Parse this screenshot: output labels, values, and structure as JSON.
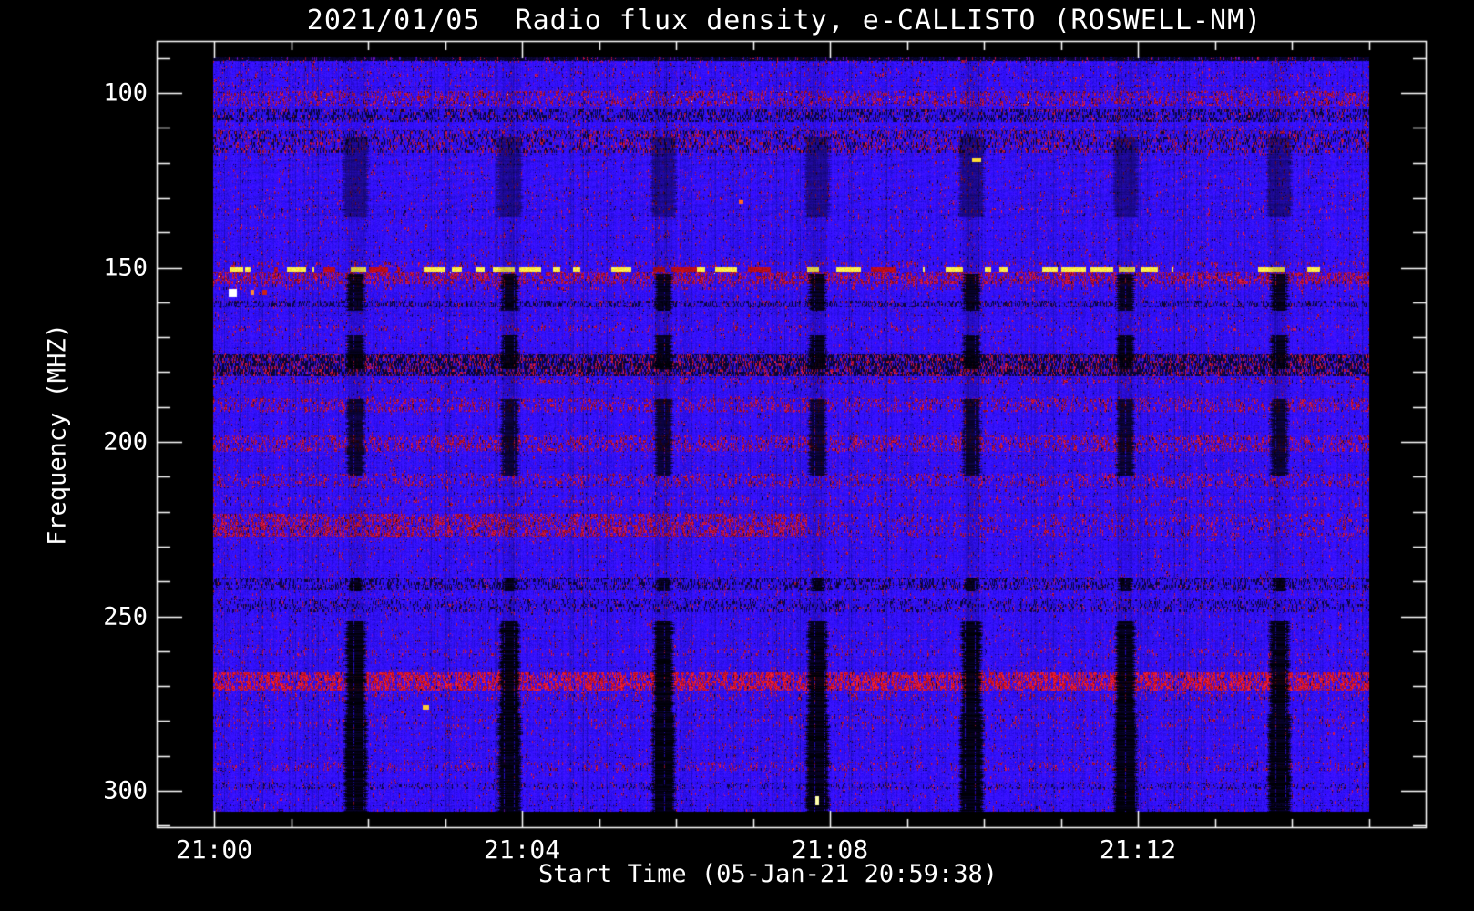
{
  "window": {
    "background": "#000000",
    "foreground": "#ffffff"
  },
  "chart_data": {
    "type": "heatmap",
    "subtype": "radio-spectrogram",
    "title": "2021/01/05  Radio flux density, e-CALLISTO (ROSWELL-NM)",
    "xlabel": "Start Time (05-Jan-21 20:59:38)",
    "ylabel": "Frequency (MHZ)",
    "station": "ROSWELL-NM",
    "date": "2021/01/05",
    "start_time": "20:59:38",
    "x_axis": {
      "major_ticks": [
        {
          "label": "21:00",
          "minute": 0
        },
        {
          "label": "21:04",
          "minute": 4
        },
        {
          "label": "21:08",
          "minute": 8
        },
        {
          "label": "21:12",
          "minute": 12
        }
      ],
      "minor_tick_every_minutes": 1,
      "frame_range_minutes": [
        -0.75,
        15.75
      ],
      "data_range_minutes": [
        0,
        15.0
      ]
    },
    "y_axis": {
      "unit": "MHz",
      "major_ticks": [
        100,
        150,
        200,
        250,
        300
      ],
      "minor_tick_step": 10,
      "frame_range_mhz": [
        85,
        311
      ],
      "data_range_mhz": [
        89.8,
        306
      ],
      "direction": "increasing-downward"
    },
    "colormap": {
      "background_blue": "#1e0ed2",
      "purple_speckle": "#6a1ea8",
      "red_speckle": "#c81628",
      "bright_red": "#ff2830",
      "yellow_burst": "#ffee44",
      "white_peak": "#fafaf0",
      "gap_black": "#000000"
    },
    "horizontal_bands": [
      {
        "f0": 89.8,
        "f1": 90.8,
        "dark": 0.85,
        "mul": 0.35,
        "red": 0.0,
        "note": "dark top edge rows"
      },
      {
        "f0": 99.5,
        "f1": 103.7,
        "red": 0.3,
        "yellow_spots": 0.02,
        "note": "RFI line ~101 MHz"
      },
      {
        "f0": 104.7,
        "f1": 108.4,
        "dark": 0.32,
        "mul": 0.82,
        "red": 0.06
      },
      {
        "f0": 110.7,
        "f1": 117.2,
        "red": 0.17,
        "dark": 0.18,
        "mul": 0.9
      },
      {
        "f0": 132.9,
        "f1": 134.5,
        "red": 0.05,
        "bright": true
      },
      {
        "f0": 148.6,
        "f1": 149.8,
        "red": 0.15
      },
      {
        "f0": 149.9,
        "f1": 151.5,
        "yellow_dashes": true,
        "note": "intermittent strong bursts at ~150.5 MHz"
      },
      {
        "f0": 151.5,
        "f1": 154.8,
        "red": 0.5,
        "white_spots": 0.0008,
        "note": "RFI ~152-155 MHz"
      },
      {
        "f0": 154.8,
        "f1": 156.4,
        "red": 0.15
      },
      {
        "f0": 159.5,
        "f1": 161.4,
        "dark": 0.3,
        "mul": 0.85
      },
      {
        "f0": 166.8,
        "f1": 168.4,
        "red": 0.12
      },
      {
        "f0": 174.9,
        "f1": 181.2,
        "dark": 0.48,
        "red": 0.22,
        "mul": 0.62,
        "note": "dark mottled band ~178 MHz"
      },
      {
        "f0": 181.7,
        "f1": 183.6,
        "red": 0.16
      },
      {
        "f0": 187.5,
        "f1": 191.4,
        "red": 0.27
      },
      {
        "f0": 198.2,
        "f1": 202.9,
        "red": 0.31
      },
      {
        "f0": 209.1,
        "f1": 213.1,
        "red": 0.23
      },
      {
        "f0": 215.7,
        "f1": 218.5,
        "red": 0.12
      },
      {
        "f0": 220.6,
        "f1": 227.4,
        "red": 0.5,
        "fade_after_min": 7.7,
        "fade_to": 0.35,
        "note": "strong RFI ~222-227 MHz, weakens after 21:08"
      },
      {
        "f0": 238.9,
        "f1": 242.6,
        "dark": 0.28,
        "mul": 0.85
      },
      {
        "f0": 245.2,
        "f1": 248.8,
        "dark": 0.2,
        "mul": 0.9
      },
      {
        "f0": 259.3,
        "f1": 261.4,
        "red": 0.12
      },
      {
        "f0": 266.1,
        "f1": 271.3,
        "red": 0.6,
        "bright": true,
        "note": "bright RFI line ~268 MHz"
      },
      {
        "f0": 271.8,
        "f1": 274.4,
        "red": 0.15
      },
      {
        "f0": 278.3,
        "f1": 282.2,
        "red": 0.1
      },
      {
        "f0": 291.6,
        "f1": 294.2,
        "red": 0.14
      },
      {
        "f0": 297.9,
        "f1": 299.5,
        "dark": 0.16,
        "mul": 0.92
      }
    ],
    "vertical_gaps": {
      "note": "periodic instrument/calibration data gaps",
      "first_center_minute": 1.834,
      "period_minutes": 2.0,
      "count": 7,
      "segments": [
        {
          "f0": 89.8,
          "f1": 112.5,
          "alpha": 0.1,
          "hw": 12
        },
        {
          "f0": 112.5,
          "f1": 135.5,
          "alpha": 0.45,
          "hw": 14
        },
        {
          "f0": 135.5,
          "f1": 151.7,
          "alpha": 0.15,
          "hw": 11
        },
        {
          "f0": 151.7,
          "f1": 162.4,
          "alpha": 0.88,
          "hw": 10
        },
        {
          "f0": 162.4,
          "f1": 169.2,
          "alpha": 0.2,
          "hw": 10
        },
        {
          "f0": 169.2,
          "f1": 178.9,
          "alpha": 0.9,
          "hw": 10
        },
        {
          "f0": 178.9,
          "f1": 187.7,
          "alpha": 0.2,
          "hw": 10
        },
        {
          "f0": 187.7,
          "f1": 209.4,
          "alpha": 0.8,
          "hw": 10
        },
        {
          "f0": 209.4,
          "f1": 238.9,
          "alpha": 0.12,
          "hw": 10
        },
        {
          "f0": 238.9,
          "f1": 242.6,
          "alpha": 0.88,
          "hw": 8
        },
        {
          "f0": 242.6,
          "f1": 251.4,
          "alpha": 0.15,
          "hw": 9
        },
        {
          "f0": 251.4,
          "f1": 278.0,
          "alpha": 0.93,
          "hw": 11
        },
        {
          "f0": 278.0,
          "f1": 306.0,
          "alpha": 0.94,
          "hw": 13
        }
      ]
    },
    "marks": [
      {
        "minute": 0.24,
        "f": 157.3,
        "w": 9,
        "h": 9,
        "color": "#ffffff",
        "note": "white saturation blob"
      },
      {
        "minute": 0.5,
        "f": 157.3,
        "w": 4,
        "h": 6,
        "color": "#ff8833"
      },
      {
        "minute": 0.66,
        "f": 157.3,
        "w": 5,
        "h": 6,
        "color": "#cc2211"
      },
      {
        "minute": 9.9,
        "f": 119.1,
        "w": 10,
        "h": 5,
        "color": "#ffdd33"
      },
      {
        "minute": 6.85,
        "f": 131.3,
        "w": 5,
        "h": 5,
        "color": "#ff6622"
      },
      {
        "minute": 2.75,
        "f": 276.2,
        "w": 7,
        "h": 5,
        "color": "#ffcc33"
      },
      {
        "minute": 7.83,
        "f": 303.0,
        "w": 4,
        "h": 10,
        "color": "#ffffaa"
      }
    ]
  }
}
